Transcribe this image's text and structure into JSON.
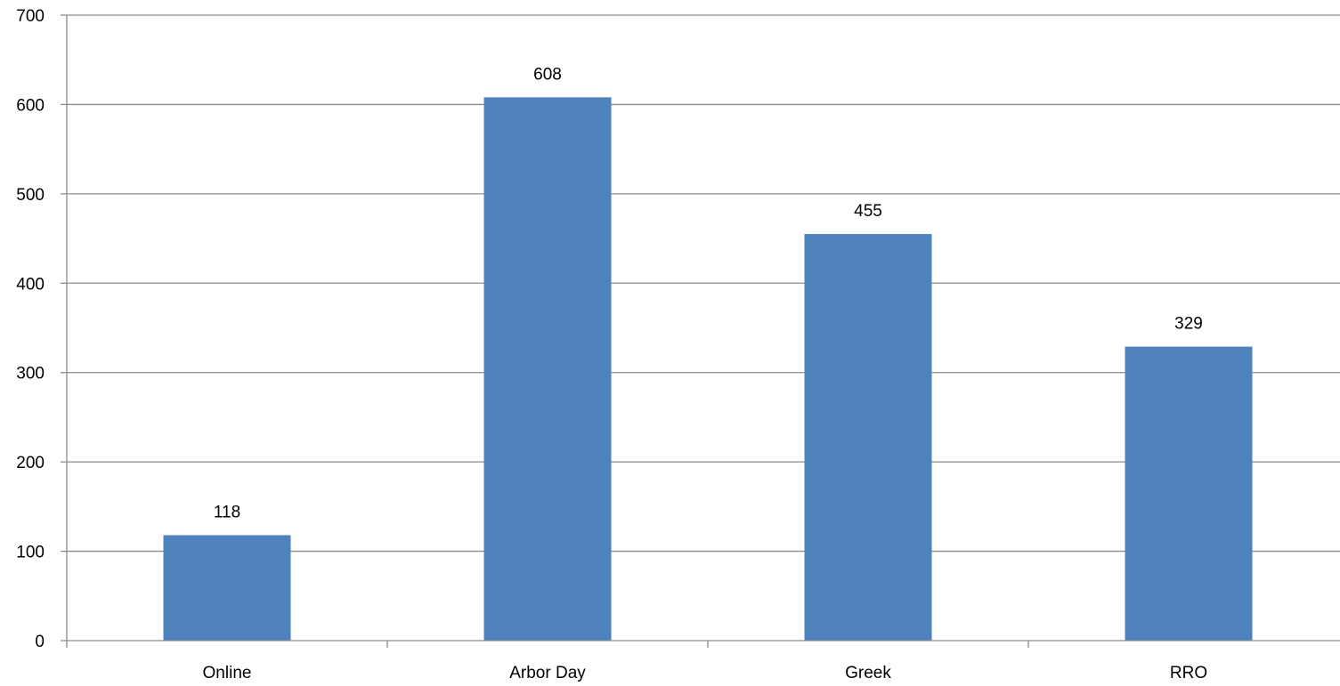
{
  "chart_data": {
    "type": "bar",
    "title": "",
    "xlabel": "",
    "ylabel": "",
    "categories": [
      "Online",
      "Arbor Day",
      "Greek",
      "RRO"
    ],
    "values": [
      118,
      608,
      455,
      329
    ],
    "data_labels": [
      "118",
      "608",
      "455",
      "329"
    ],
    "ylim": [
      0,
      700
    ],
    "y_ticks": [
      0,
      100,
      200,
      300,
      400,
      500,
      600,
      700
    ],
    "y_tick_labels": [
      "0",
      "100",
      "200",
      "300",
      "400",
      "500",
      "600",
      "700"
    ],
    "grid": true,
    "legend": "none",
    "bar_color": "#4f81bd"
  }
}
